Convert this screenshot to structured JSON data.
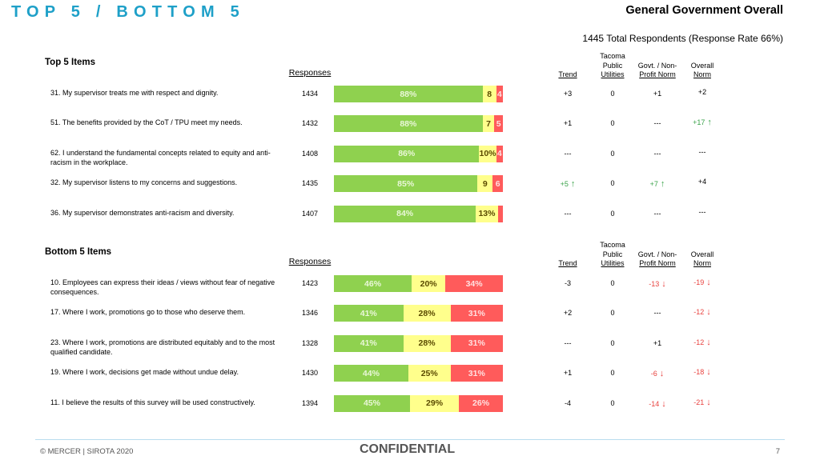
{
  "header": {
    "page_title": "TOP 5 / BOTTOM 5",
    "report_title": "General Government Overall",
    "respondents": "1445 Total Respondents (Response Rate  66%)"
  },
  "columns": {
    "responses": "Responses",
    "trend": "Trend",
    "tacoma_line1": "Tacoma",
    "tacoma_line2": "Public",
    "tacoma_line3": "Utilities",
    "govt_line1": "Govt. / Non-",
    "govt_line2": "Profit Norm",
    "overall_line1": "Overall",
    "overall_line2": "Norm"
  },
  "colors": {
    "favorable": "#8fd14f",
    "neutral": "#ffff8c",
    "unfavorable": "#ff5b5b",
    "title_accent": "#1ea0c8",
    "positive_text": "#3aa34a",
    "negative_text": "#e8413e"
  },
  "chart_data": {
    "type": "bar",
    "orientation": "horizontal-stacked-100",
    "series_names": [
      "Favorable",
      "Neutral",
      "Unfavorable"
    ],
    "sections": [
      {
        "title": "Top 5 Items",
        "items": [
          {
            "text": "31. My supervisor treats me with respect and dignity.",
            "responses": "1434",
            "values": [
              88,
              8,
              4
            ],
            "labels": [
              "88%",
              "8",
              "4"
            ],
            "trend": "+3",
            "trend_dir": "",
            "tacoma": "0",
            "govt": "+1",
            "govt_dir": "",
            "overall": "+2",
            "overall_dir": ""
          },
          {
            "text": "51. The benefits provided by the CoT / TPU meet my needs.",
            "responses": "1432",
            "values": [
              88,
              7,
              5
            ],
            "labels": [
              "88%",
              "7",
              "5"
            ],
            "trend": "+1",
            "trend_dir": "",
            "tacoma": "0",
            "govt": "---",
            "govt_dir": "",
            "overall": "+17",
            "overall_dir": "up"
          },
          {
            "text": "62. I understand the fundamental concepts related to equity and anti-racism in the workplace.",
            "responses": "1408",
            "values": [
              86,
              10,
              4
            ],
            "labels": [
              "86%",
              "10%",
              "4"
            ],
            "trend": "---",
            "trend_dir": "",
            "tacoma": "0",
            "govt": "---",
            "govt_dir": "",
            "overall": "---",
            "overall_dir": ""
          },
          {
            "text": "32. My supervisor listens to my concerns and suggestions.",
            "responses": "1435",
            "values": [
              85,
              9,
              6
            ],
            "labels": [
              "85%",
              "9",
              "6"
            ],
            "trend": "+5",
            "trend_dir": "up",
            "tacoma": "0",
            "govt": "+7",
            "govt_dir": "up",
            "overall": "+4",
            "overall_dir": ""
          },
          {
            "text": "36. My supervisor demonstrates anti-racism and diversity.",
            "responses": "1407",
            "values": [
              84,
              13,
              3
            ],
            "labels": [
              "84%",
              "13%",
              ""
            ],
            "trend": "---",
            "trend_dir": "",
            "tacoma": "0",
            "govt": "---",
            "govt_dir": "",
            "overall": "---",
            "overall_dir": ""
          }
        ]
      },
      {
        "title": "Bottom 5 Items",
        "items": [
          {
            "text": "10. Employees can express their ideas / views without fear of negative consequences.",
            "responses": "1423",
            "values": [
              46,
              20,
              34
            ],
            "labels": [
              "46%",
              "20%",
              "34%"
            ],
            "trend": "-3",
            "trend_dir": "",
            "tacoma": "0",
            "govt": "-13",
            "govt_dir": "down",
            "overall": "-19",
            "overall_dir": "down"
          },
          {
            "text": "17. Where I work, promotions go to those who deserve them.",
            "responses": "1346",
            "values": [
              41,
              28,
              31
            ],
            "labels": [
              "41%",
              "28%",
              "31%"
            ],
            "trend": "+2",
            "trend_dir": "",
            "tacoma": "0",
            "govt": "---",
            "govt_dir": "",
            "overall": "-12",
            "overall_dir": "down"
          },
          {
            "text": "23. Where I work, promotions are distributed equitably and to the most qualified candidate.",
            "responses": "1328",
            "values": [
              41,
              28,
              31
            ],
            "labels": [
              "41%",
              "28%",
              "31%"
            ],
            "trend": "---",
            "trend_dir": "",
            "tacoma": "0",
            "govt": "+1",
            "govt_dir": "",
            "overall": "-12",
            "overall_dir": "down"
          },
          {
            "text": "19. Where I work, decisions get made without undue delay.",
            "responses": "1430",
            "values": [
              44,
              25,
              31
            ],
            "labels": [
              "44%",
              "25%",
              "31%"
            ],
            "trend": "+1",
            "trend_dir": "",
            "tacoma": "0",
            "govt": "-6",
            "govt_dir": "down",
            "overall": "-18",
            "overall_dir": "down"
          },
          {
            "text": "11. I believe the results of this survey will be used constructively.",
            "responses": "1394",
            "values": [
              45,
              29,
              26
            ],
            "labels": [
              "45%",
              "29%",
              "26%"
            ],
            "trend": "-4",
            "trend_dir": "",
            "tacoma": "0",
            "govt": "-14",
            "govt_dir": "down",
            "overall": "-21",
            "overall_dir": "down"
          }
        ]
      }
    ]
  },
  "footer": {
    "copyright": "© MERCER | SIROTA 2020",
    "confidential": "CONFIDENTIAL",
    "page_number": "7"
  }
}
